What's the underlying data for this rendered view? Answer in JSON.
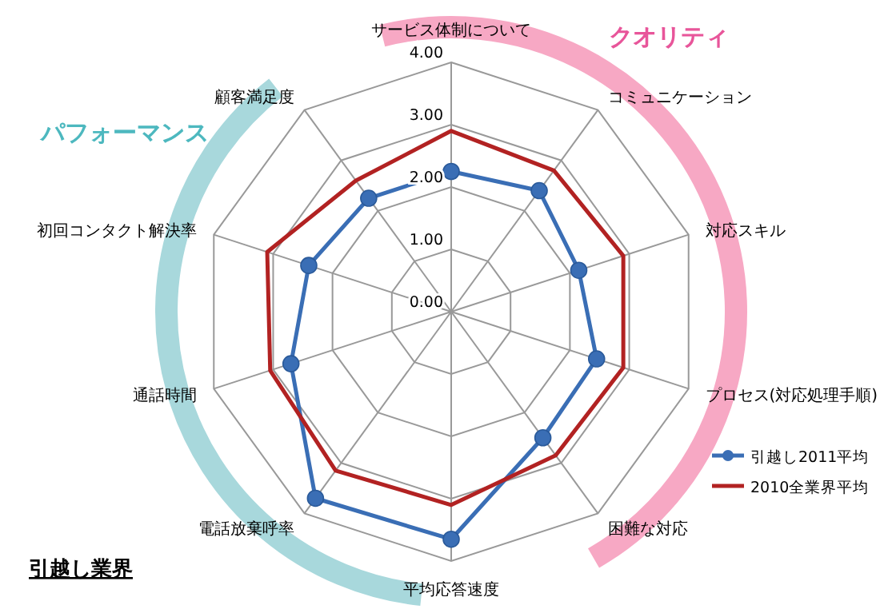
{
  "chart_data": {
    "type": "radar",
    "categories": [
      "サービス体制について",
      "コミュニケーション",
      "対応スキル",
      "プロセス(対応処理手順)",
      "困難な対応",
      "平均応答速度",
      "電話放棄呼率",
      "通話時間",
      "初回コンタクト解決率",
      "顧客満足度"
    ],
    "series": [
      {
        "name": "引越し2011平均",
        "color": "#3a6eb5",
        "marker": "circle",
        "values": [
          2.25,
          2.4,
          2.15,
          2.45,
          2.5,
          3.65,
          3.7,
          2.7,
          2.4,
          2.25
        ]
      },
      {
        "name": "2010全業界平均",
        "color": "#b22222",
        "marker": "none",
        "values": [
          2.9,
          2.8,
          2.9,
          2.9,
          2.85,
          3.1,
          3.15,
          3.05,
          3.1,
          2.6
        ]
      }
    ],
    "ylim": [
      0,
      4
    ],
    "yticks": [
      {
        "value": 0,
        "label": "0.00"
      },
      {
        "value": 1,
        "label": "1.00"
      },
      {
        "value": 2,
        "label": "2.00"
      },
      {
        "value": 3,
        "label": "3.00"
      },
      {
        "value": 4,
        "label": "4.00"
      }
    ],
    "grid": true,
    "legend": "right",
    "annotations": [
      "クオリティ",
      "パフォーマンス",
      "引越し業界"
    ]
  }
}
